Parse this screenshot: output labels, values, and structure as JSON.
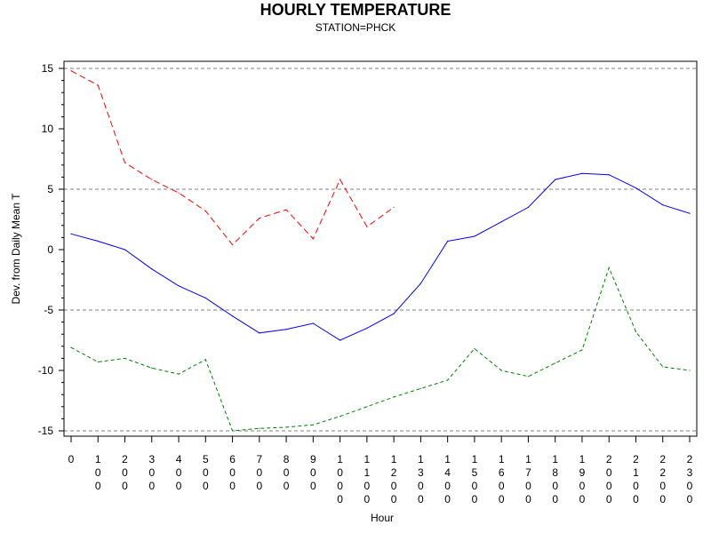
{
  "chart_data": {
    "type": "line",
    "title": "HOURLY TEMPERATURE",
    "subtitle": "STATION=PHCK",
    "xlabel": "Hour",
    "ylabel": "Dev. from Daily Mean T",
    "xlim": [
      0,
      2300
    ],
    "ylim": [
      -15,
      15
    ],
    "yticks": [
      -15,
      -10,
      -5,
      0,
      5,
      10,
      15
    ],
    "reference_lines": [
      -15,
      -5,
      5,
      15
    ],
    "x": [
      0,
      100,
      200,
      300,
      400,
      500,
      600,
      700,
      800,
      900,
      1000,
      1100,
      1200,
      1300,
      1400,
      1500,
      1600,
      1700,
      1800,
      1900,
      2000,
      2100,
      2200,
      2300
    ],
    "x_tick_labels": [
      "0",
      "100",
      "200",
      "300",
      "400",
      "500",
      "600",
      "700",
      "800",
      "900",
      "1000",
      "1100",
      "1200",
      "1300",
      "1400",
      "1500",
      "1600",
      "1700",
      "1800",
      "1900",
      "2000",
      "2100",
      "2200",
      "2300"
    ],
    "series": [
      {
        "style": "solid",
        "color": "#0000ff",
        "values": [
          1.3,
          0.7,
          0.0,
          -1.6,
          -3.0,
          -4.0,
          -5.5,
          -6.9,
          -6.6,
          -6.1,
          -7.5,
          -6.5,
          -5.3,
          -2.8,
          0.7,
          1.1,
          2.3,
          3.5,
          5.8,
          6.3,
          6.2,
          5.1,
          3.7,
          3.0
        ]
      },
      {
        "style": "dashed",
        "color": "#ff0000",
        "values": [
          14.8,
          13.6,
          7.2,
          5.8,
          4.7,
          3.2,
          0.4,
          2.6,
          3.3,
          0.9,
          5.8,
          1.9,
          3.5,
          null,
          null,
          null,
          null,
          null,
          null,
          null,
          null,
          null,
          null,
          null
        ]
      },
      {
        "style": "dashed",
        "color": "#008000",
        "values": [
          -8.1,
          -9.3,
          -9.0,
          -9.8,
          -10.3,
          -9.1,
          -15.0,
          -14.8,
          -14.7,
          -14.5,
          -13.8,
          -13.0,
          -12.2,
          -11.5,
          -10.8,
          -8.2,
          -10.0,
          -10.5,
          -9.4,
          -8.3,
          -1.5,
          -6.8,
          -9.7,
          -10.0
        ]
      }
    ]
  }
}
